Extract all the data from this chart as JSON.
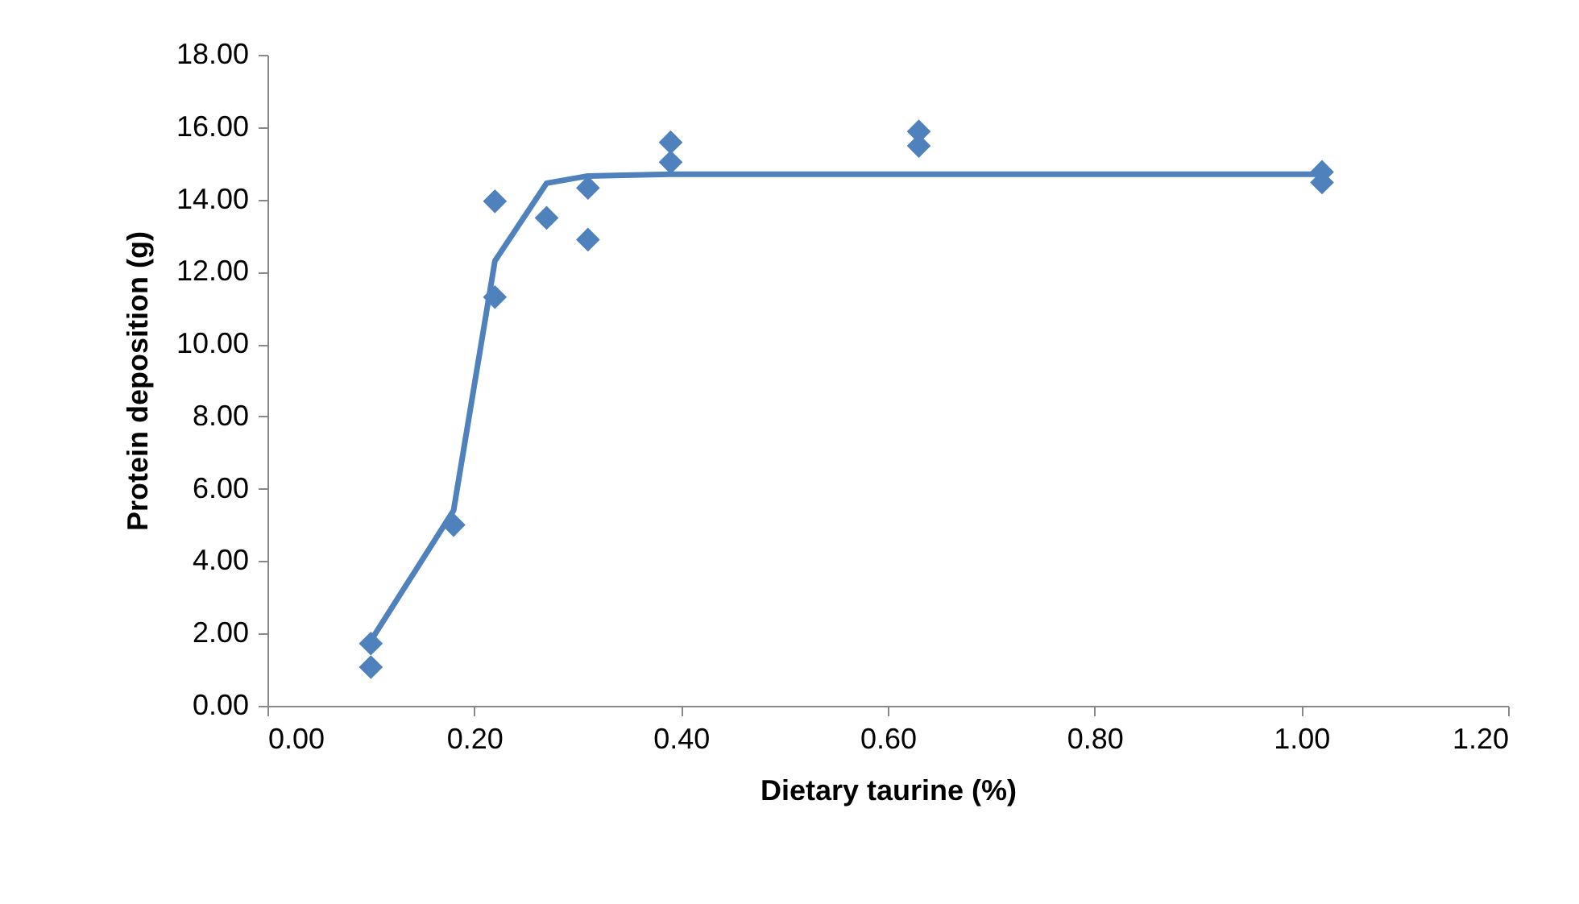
{
  "chart_data": {
    "type": "scatter",
    "xlabel": "Dietary taurine (%)",
    "ylabel": "Protein deposition (g)",
    "xlim": [
      0,
      1.2
    ],
    "ylim": [
      0,
      18
    ],
    "xticks": [
      {
        "value": 0,
        "label": "0.00"
      },
      {
        "value": 0.2,
        "label": "0.20"
      },
      {
        "value": 0.4,
        "label": "0.40"
      },
      {
        "value": 0.6,
        "label": "0.60"
      },
      {
        "value": 0.8,
        "label": "0.80"
      },
      {
        "value": 1,
        "label": "1.00"
      },
      {
        "value": 1.2,
        "label": "1.20"
      }
    ],
    "yticks": [
      {
        "value": 0,
        "label": "0.00"
      },
      {
        "value": 2,
        "label": "2.00"
      },
      {
        "value": 4,
        "label": "4.00"
      },
      {
        "value": 6,
        "label": "6.00"
      },
      {
        "value": 8,
        "label": "8.00"
      },
      {
        "value": 10,
        "label": "10.00"
      },
      {
        "value": 12,
        "label": "12.00"
      },
      {
        "value": 14,
        "label": "14.00"
      },
      {
        "value": 16,
        "label": "16.00"
      },
      {
        "value": 18,
        "label": "18.00"
      }
    ],
    "marker": "diamond",
    "series": [
      {
        "color": "#4f81bd",
        "x": [
          0.1,
          0.1,
          0.18,
          0.22,
          0.22,
          0.27,
          0.31,
          0.31,
          0.39,
          0.39,
          0.63,
          0.63,
          1.02,
          1.02
        ],
        "values": [
          1.07,
          1.72,
          5.0,
          13.95,
          11.3,
          13.49,
          14.32,
          12.89,
          15.58,
          15.03,
          15.88,
          15.48,
          14.76,
          14.47
        ]
      },
      {
        "type": "line",
        "color": "#4f81bd",
        "marker": "none",
        "x": [
          0.1,
          0.18,
          0.22,
          0.27,
          0.31,
          0.39,
          0.63,
          1.02
        ],
        "values": [
          1.8,
          5.4,
          12.3,
          14.45,
          14.65,
          14.7,
          14.7,
          14.7
        ]
      }
    ]
  }
}
